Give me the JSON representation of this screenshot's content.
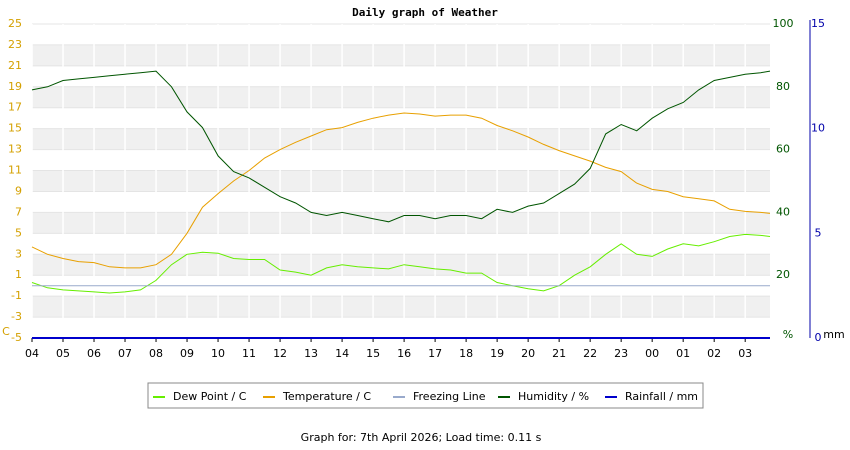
{
  "chart_data": {
    "type": "line",
    "title": "Daily graph of Weather",
    "footer": "Graph for: 7th April 2026; Load time: 0.11 s",
    "y_unit_label": "C",
    "y2_unit_label": "%",
    "y3_unit_label": "mm",
    "xlim": [
      0,
      23.8
    ],
    "xticks": [
      {
        "value": 0,
        "label": "04"
      },
      {
        "value": 1,
        "label": "05"
      },
      {
        "value": 2,
        "label": "06"
      },
      {
        "value": 3,
        "label": "07"
      },
      {
        "value": 4,
        "label": "08"
      },
      {
        "value": 5,
        "label": "09"
      },
      {
        "value": 6,
        "label": "10"
      },
      {
        "value": 7,
        "label": "11"
      },
      {
        "value": 8,
        "label": "12"
      },
      {
        "value": 9,
        "label": "13"
      },
      {
        "value": 10,
        "label": "14"
      },
      {
        "value": 11,
        "label": "15"
      },
      {
        "value": 12,
        "label": "16"
      },
      {
        "value": 13,
        "label": "17"
      },
      {
        "value": 14,
        "label": "18"
      },
      {
        "value": 15,
        "label": "19"
      },
      {
        "value": 16,
        "label": "20"
      },
      {
        "value": 17,
        "label": "21"
      },
      {
        "value": 18,
        "label": "22"
      },
      {
        "value": 19,
        "label": "23"
      },
      {
        "value": 20,
        "label": "00"
      },
      {
        "value": 21,
        "label": "01"
      },
      {
        "value": 22,
        "label": "02"
      },
      {
        "value": 23,
        "label": "03"
      }
    ],
    "ylim": [
      -5,
      25
    ],
    "yticks": [
      -5,
      -3,
      -1,
      1,
      3,
      5,
      7,
      9,
      11,
      13,
      15,
      17,
      19,
      21,
      23,
      25
    ],
    "y2lim": [
      0,
      100
    ],
    "y2ticks": [
      20,
      40,
      60,
      80,
      100
    ],
    "y3lim": [
      0,
      15
    ],
    "y3ticks": [
      0,
      5,
      10,
      15
    ],
    "x": [
      0,
      0.5,
      1,
      1.5,
      2,
      2.5,
      3,
      3.5,
      4,
      4.5,
      5,
      5.5,
      6,
      6.5,
      7,
      7.5,
      8,
      8.5,
      9,
      9.5,
      10,
      10.5,
      11,
      11.5,
      12,
      12.5,
      13,
      13.5,
      14,
      14.5,
      15,
      15.5,
      16,
      16.5,
      17,
      17.5,
      18,
      18.5,
      19,
      19.5,
      20,
      20.5,
      21,
      21.5,
      22,
      22.5,
      23,
      23.5,
      23.8
    ],
    "series": [
      {
        "name": "Dew Point / C",
        "color": "#66ee00",
        "axis": "y",
        "values": [
          0.3,
          -0.2,
          -0.4,
          -0.5,
          -0.6,
          -0.7,
          -0.6,
          -0.4,
          0.5,
          2.0,
          3.0,
          3.2,
          3.1,
          2.6,
          2.5,
          2.5,
          1.5,
          1.3,
          1.0,
          1.7,
          2.0,
          1.8,
          1.7,
          1.6,
          2.0,
          1.8,
          1.6,
          1.5,
          1.2,
          1.2,
          0.3,
          0.0,
          -0.3,
          -0.5,
          0.0,
          1.0,
          1.8,
          3.0,
          4.0,
          3.0,
          2.8,
          3.5,
          4.0,
          3.8,
          4.2,
          4.7,
          4.9,
          4.8,
          4.7
        ]
      },
      {
        "name": "Temperature / C",
        "color": "#e8a000",
        "axis": "y",
        "values": [
          3.7,
          3.0,
          2.6,
          2.3,
          2.2,
          1.8,
          1.7,
          1.7,
          2.0,
          3.0,
          5.0,
          7.5,
          8.8,
          10.0,
          11.0,
          12.2,
          13.0,
          13.7,
          14.3,
          14.9,
          15.1,
          15.6,
          16.0,
          16.3,
          16.5,
          16.4,
          16.2,
          16.3,
          16.3,
          16.0,
          15.3,
          14.8,
          14.2,
          13.5,
          12.9,
          12.4,
          11.9,
          11.3,
          10.9,
          9.8,
          9.2,
          9.0,
          8.5,
          8.3,
          8.1,
          7.3,
          7.1,
          7.0,
          6.9
        ]
      },
      {
        "name": "Freezing Line",
        "color": "#99aacc",
        "axis": "y",
        "values": [
          0,
          0,
          0,
          0,
          0,
          0,
          0,
          0,
          0,
          0,
          0,
          0,
          0,
          0,
          0,
          0,
          0,
          0,
          0,
          0,
          0,
          0,
          0,
          0,
          0,
          0,
          0,
          0,
          0,
          0,
          0,
          0,
          0,
          0,
          0,
          0,
          0,
          0,
          0,
          0,
          0,
          0,
          0,
          0,
          0,
          0,
          0,
          0,
          0
        ]
      },
      {
        "name": "Humidity / %",
        "color": "#005500",
        "axis": "y2",
        "values": [
          79,
          80,
          82,
          82.5,
          83,
          83.5,
          84,
          84.5,
          85,
          80,
          72,
          67,
          58,
          53,
          51,
          48,
          45,
          43,
          40,
          39,
          40,
          39,
          38,
          37,
          39,
          39,
          38,
          39,
          39,
          38,
          41,
          40,
          42,
          43,
          46,
          49,
          54,
          65,
          68,
          66,
          70,
          73,
          75,
          79,
          82,
          83,
          84,
          84.5,
          85
        ]
      },
      {
        "name": "Rainfall / mm",
        "color": "#0000cc",
        "axis": "y3",
        "values": [
          0,
          0,
          0,
          0,
          0,
          0,
          0,
          0,
          0,
          0,
          0,
          0,
          0,
          0,
          0,
          0,
          0,
          0,
          0,
          0,
          0,
          0,
          0,
          0,
          0,
          0,
          0,
          0,
          0,
          0,
          0,
          0,
          0,
          0,
          0,
          0,
          0,
          0,
          0,
          0,
          0,
          0,
          0,
          0,
          0,
          0,
          0,
          0,
          0
        ]
      }
    ],
    "axis_colors": {
      "y": "#d4a000",
      "y2": "#005500",
      "y3": "#0000aa"
    },
    "grid": true
  }
}
